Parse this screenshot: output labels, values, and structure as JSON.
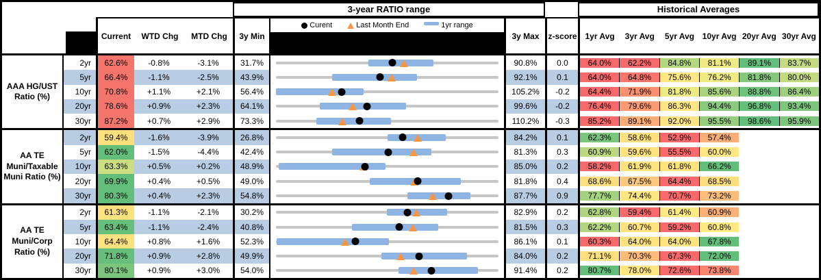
{
  "colors": {
    "stripe": "#B8CCE4",
    "bar": "#8DB4E2",
    "track": "#C6C6C6",
    "triangle": "#F79646",
    "dot": "#000000",
    "header_band": "#000000"
  },
  "chart_data": {
    "type": "table",
    "range_title": "3-year RATIO range",
    "hist_title": "Historical Averages",
    "legend": {
      "current": "Curent",
      "last_month": "Last Month End",
      "range": "1yr range"
    },
    "columns": {
      "current": "Current",
      "wtd": "WTD Chg",
      "mtd": "MTD Chg",
      "min": "3y Min",
      "max": "3y Max",
      "z": "z-score"
    },
    "avg_columns": [
      "1yr Avg",
      "3yr Avg",
      "5yr Avg",
      "10yr Avg",
      "20yr Avg",
      "30yr Avg"
    ],
    "groups": [
      {
        "label": "AAA HG/UST Ratio (%)",
        "rows": [
          {
            "tenor": "2yr",
            "current": 62.6,
            "current_bg": "#F4756C",
            "wtd": -0.8,
            "mtd": -3.1,
            "min": 31.7,
            "max": 90.8,
            "z": "0.0",
            "bar": [
              56.3,
              73.5
            ],
            "lme": 65.7,
            "avgs": [
              {
                "v": 64.0,
                "bg": "#F8696B"
              },
              {
                "v": 62.2,
                "bg": "#F8696B"
              },
              {
                "v": 84.8,
                "bg": "#B5D77F"
              },
              {
                "v": 81.1,
                "bg": "#EFEA83"
              },
              {
                "v": 89.1,
                "bg": "#63BE7B"
              },
              {
                "v": 83.7,
                "bg": "#C3DA81"
              }
            ]
          },
          {
            "tenor": "5yr",
            "current": 66.4,
            "current_bg": "#F4756C",
            "wtd": -1.1,
            "mtd": -2.5,
            "min": 43.9,
            "max": 92.1,
            "z": "0.1",
            "bar": [
              56.1,
              74.4
            ],
            "lme": 68.9,
            "avgs": [
              {
                "v": 64.0,
                "bg": "#F8696B"
              },
              {
                "v": 64.8,
                "bg": "#F8756D"
              },
              {
                "v": 75.6,
                "bg": "#FFE884"
              },
              {
                "v": 76.2,
                "bg": "#F0EA83"
              },
              {
                "v": 81.8,
                "bg": "#84C77D"
              },
              {
                "v": 80.0,
                "bg": "#C4DA81"
              }
            ]
          },
          {
            "tenor": "10yr",
            "current": 70.8,
            "current_bg": "#F4756C",
            "wtd": 1.1,
            "mtd": 2.1,
            "min": 56.4,
            "max": 105.2,
            "z": "-0.2",
            "bar": [
              56.4,
              75.6
            ],
            "lme": 68.7,
            "avgs": [
              {
                "v": 64.4,
                "bg": "#F8696B"
              },
              {
                "v": 71.9,
                "bg": "#F9906F"
              },
              {
                "v": 81.8,
                "bg": "#EDE983"
              },
              {
                "v": 85.6,
                "bg": "#AAD37F"
              },
              {
                "v": 88.8,
                "bg": "#6EC27C"
              },
              {
                "v": 86.4,
                "bg": "#9ECF7F"
              }
            ]
          },
          {
            "tenor": "20yr",
            "current": 78.6,
            "current_bg": "#F4756C",
            "wtd": 0.9,
            "mtd": 2.3,
            "min": 64.1,
            "max": 99.6,
            "z": "-0.2",
            "bar": [
              71.1,
              84.8
            ],
            "lme": 76.3,
            "avgs": [
              {
                "v": 76.4,
                "bg": "#F8696B"
              },
              {
                "v": 79.6,
                "bg": "#FA9B73"
              },
              {
                "v": 86.3,
                "bg": "#FFE583"
              },
              {
                "v": 94.4,
                "bg": "#8BC97E"
              },
              {
                "v": 96.8,
                "bg": "#66BF7B"
              },
              {
                "v": 93.4,
                "bg": "#7EC57D"
              }
            ]
          },
          {
            "tenor": "30yr",
            "current": 87.2,
            "current_bg": "#F4756C",
            "wtd": 0.7,
            "mtd": 2.9,
            "min": 73.3,
            "max": 110.2,
            "z": "-0.3",
            "bar": [
              80.0,
              92.4
            ],
            "lme": 84.3,
            "avgs": [
              {
                "v": 85.2,
                "bg": "#F8696B"
              },
              {
                "v": 89.1,
                "bg": "#FBAC77"
              },
              {
                "v": 92.0,
                "bg": "#FFE583"
              },
              {
                "v": 95.5,
                "bg": "#97CD7F"
              },
              {
                "v": 98.6,
                "bg": "#63BE7B"
              },
              {
                "v": 95.9,
                "bg": "#7EC57D"
              }
            ]
          }
        ]
      },
      {
        "label": "AA TE Muni/Taxable Muni Ratio (%)",
        "rows": [
          {
            "tenor": "2yr",
            "current": 59.4,
            "current_bg": "#FFE07D",
            "wtd": -1.6,
            "mtd": -3.9,
            "min": 26.8,
            "max": 84.2,
            "z": "0.1",
            "bar": [
              55.5,
              70.6
            ],
            "lme": 63.3,
            "avgs": [
              {
                "v": 62.3,
                "bg": "#7BC57D"
              },
              {
                "v": 58.6,
                "bg": "#FFE07D"
              },
              {
                "v": 52.9,
                "bg": "#F8696B"
              },
              {
                "v": 57.4,
                "bg": "#FBAE78"
              },
              null,
              null
            ]
          },
          {
            "tenor": "5yr",
            "current": 62.0,
            "current_bg": "#63BE7B",
            "wtd": -1.5,
            "mtd": -4.4,
            "min": 42.4,
            "max": 81.3,
            "z": "0.3",
            "bar": [
              52.2,
              69.6
            ],
            "lme": 66.4,
            "avgs": [
              {
                "v": 60.9,
                "bg": "#BCD880"
              },
              {
                "v": 59.6,
                "bg": "#FFE37F"
              },
              {
                "v": 55.5,
                "bg": "#F8696B"
              },
              {
                "v": 60.0,
                "bg": "#FFE884"
              },
              null,
              null
            ]
          },
          {
            "tenor": "10yr",
            "current": 63.3,
            "current_bg": "#CADD81",
            "wtd": 0.5,
            "mtd": 0.2,
            "min": 48.9,
            "max": 85.0,
            "z": "0.2",
            "bar": [
              49.3,
              66.7
            ],
            "lme": 63.1,
            "avgs": [
              {
                "v": 58.2,
                "bg": "#F8696B"
              },
              {
                "v": 61.9,
                "bg": "#FFE37F"
              },
              {
                "v": 61.8,
                "bg": "#FFE37F"
              },
              {
                "v": 66.2,
                "bg": "#63BE7B"
              },
              null,
              null
            ]
          },
          {
            "tenor": "20yr",
            "current": 69.9,
            "current_bg": "#63BE7B",
            "wtd": 0.4,
            "mtd": 0.5,
            "min": 49.0,
            "max": 81.8,
            "z": "0.4",
            "bar": [
              62.8,
              76.2
            ],
            "lme": 69.4,
            "avgs": [
              {
                "v": 68.6,
                "bg": "#FFDF7D"
              },
              {
                "v": 67.5,
                "bg": "#FDC87D"
              },
              {
                "v": 64.4,
                "bg": "#F8696B"
              },
              {
                "v": 68.5,
                "bg": "#FFDF7D"
              },
              null,
              null
            ]
          },
          {
            "tenor": "30yr",
            "current": 80.3,
            "current_bg": "#63BE7B",
            "wtd": 0.4,
            "mtd": 2.3,
            "min": 54.8,
            "max": 87.7,
            "z": "0.9",
            "bar": [
              74.2,
              83.5
            ],
            "lme": 78.0,
            "avgs": [
              {
                "v": 77.7,
                "bg": "#A4D27F"
              },
              {
                "v": 74.4,
                "bg": "#FFE681"
              },
              {
                "v": 70.7,
                "bg": "#F8696B"
              },
              {
                "v": 73.2,
                "bg": "#FCBD7B"
              },
              null,
              null
            ]
          }
        ]
      },
      {
        "label": "AA TE Muni/Corp Ratio (%)",
        "rows": [
          {
            "tenor": "2yr",
            "current": 61.3,
            "current_bg": "#FFE180",
            "wtd": -1.1,
            "mtd": -2.1,
            "min": 30.2,
            "max": 82.9,
            "z": "0.2",
            "bar": [
              56.4,
              70.7
            ],
            "lme": 63.4,
            "avgs": [
              {
                "v": 62.8,
                "bg": "#AFD47F"
              },
              {
                "v": 59.4,
                "bg": "#F8696B"
              },
              {
                "v": 61.4,
                "bg": "#FFE983"
              },
              {
                "v": 60.9,
                "bg": "#FBB078"
              },
              null,
              null
            ]
          },
          {
            "tenor": "5yr",
            "current": 63.4,
            "current_bg": "#66BF7B",
            "wtd": -1.1,
            "mtd": -2.4,
            "min": 40.8,
            "max": 81.5,
            "z": "0.3",
            "bar": [
              54.7,
              70.5
            ],
            "lme": 65.8,
            "avgs": [
              {
                "v": 62.2,
                "bg": "#B4D680"
              },
              {
                "v": 60.7,
                "bg": "#FFE37F"
              },
              {
                "v": 59.2,
                "bg": "#F8696B"
              },
              {
                "v": 60.8,
                "bg": "#FFE983"
              },
              null,
              null
            ]
          },
          {
            "tenor": "10yr",
            "current": 64.4,
            "current_bg": "#FFE180",
            "wtd": 0.8,
            "mtd": 1.6,
            "min": 52.3,
            "max": 86.1,
            "z": "0.1",
            "bar": [
              52.4,
              69.5
            ],
            "lme": 62.8,
            "avgs": [
              {
                "v": 60.3,
                "bg": "#F8696B"
              },
              {
                "v": 64.0,
                "bg": "#FFE37F"
              },
              {
                "v": 64.0,
                "bg": "#FFE37F"
              },
              {
                "v": 67.8,
                "bg": "#63BE7B"
              },
              null,
              null
            ]
          },
          {
            "tenor": "20yr",
            "current": 71.8,
            "current_bg": "#66BF7B",
            "wtd": 0.9,
            "mtd": 2.8,
            "min": 49.9,
            "max": 84.0,
            "z": "0.2",
            "bar": [
              66.1,
              79.2
            ],
            "lme": 69.0,
            "avgs": [
              {
                "v": 71.1,
                "bg": "#FFE07D"
              },
              {
                "v": 70.3,
                "bg": "#FCBB7A"
              },
              {
                "v": 67.3,
                "bg": "#F8696B"
              },
              {
                "v": 72.0,
                "bg": "#63BE7B"
              },
              null,
              null
            ]
          },
          {
            "tenor": "30yr",
            "current": 80.1,
            "current_bg": "#7BC57D",
            "wtd": 0.9,
            "mtd": 3.0,
            "min": 54.0,
            "max": 91.4,
            "z": "0.2",
            "bar": [
              74.6,
              88.0
            ],
            "lme": 77.1,
            "avgs": [
              {
                "v": 80.7,
                "bg": "#63BE7B"
              },
              {
                "v": 78.0,
                "bg": "#FFE681"
              },
              {
                "v": 72.6,
                "bg": "#F8696B"
              },
              {
                "v": 73.8,
                "bg": "#F9876F"
              },
              null,
              null
            ]
          }
        ]
      }
    ]
  }
}
